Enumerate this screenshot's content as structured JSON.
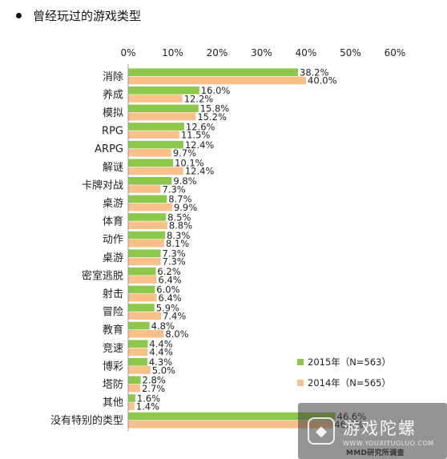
{
  "header": {
    "title": "曾经玩过的游戏类型"
  },
  "watermark": {
    "name": "游戏陀螺",
    "url": "WWW.YOUXITUOLUO.COM"
  },
  "credit": "MMD研究所调查",
  "colors": {
    "series_2015": "#8cc94a",
    "series_2014": "#f9c08a",
    "axis": "#999999"
  },
  "chart_data": {
    "type": "bar",
    "orientation": "horizontal",
    "title": "曾经玩过的游戏类型",
    "xlabel": "",
    "ylabel": "",
    "xlim": [
      0,
      60
    ],
    "ticks": [
      "0%",
      "10%",
      "20%",
      "30%",
      "40%",
      "50%",
      "60%"
    ],
    "grid": false,
    "legend_position": "bottom-right",
    "categories": [
      "消除",
      "养成",
      "模拟",
      "RPG",
      "ARPG",
      "解谜",
      "卡牌对战",
      "桌游",
      "体育",
      "动作",
      "桌游",
      "密室逃脱",
      "射击",
      "冒险",
      "教育",
      "竞速",
      "博彩",
      "塔防",
      "其他",
      "没有特别的类型"
    ],
    "series": [
      {
        "name": "2015年（N=563）",
        "values": [
          38.2,
          16.0,
          15.8,
          12.6,
          12.4,
          10.1,
          9.8,
          8.7,
          8.5,
          8.3,
          7.3,
          6.2,
          6.0,
          5.9,
          4.8,
          4.4,
          4.3,
          2.8,
          1.6,
          46.6
        ],
        "labels": [
          "38.2%",
          "16.0%",
          "15.8%",
          "12.6%",
          "12.4%",
          "10.1%",
          "9.8%",
          "8.7%",
          "8.5%",
          "8.3%",
          "7.3%",
          "6.2%",
          "6.0%",
          "5.9%",
          "4.8%",
          "4.4%",
          "4.3%",
          "2.8%",
          "1.6%",
          "46.6%"
        ]
      },
      {
        "name": "2014年（N=565）",
        "values": [
          40.0,
          12.2,
          15.2,
          11.5,
          9.7,
          12.4,
          7.3,
          9.9,
          8.8,
          8.1,
          7.3,
          6.4,
          6.4,
          7.4,
          8.0,
          4.4,
          5.0,
          2.7,
          1.4,
          46.0
        ],
        "labels": [
          "40.0%",
          "12.2%",
          "15.2%",
          "11.5%",
          "9.7%",
          "12.4%",
          "7.3%",
          "9.9%",
          "8.8%",
          "8.1%",
          "7.3%",
          "6.4%",
          "6.4%",
          "7.4%",
          "8.0%",
          "4.4%",
          "5.0%",
          "2.7%",
          "1.4%",
          "46.0%"
        ]
      }
    ]
  }
}
